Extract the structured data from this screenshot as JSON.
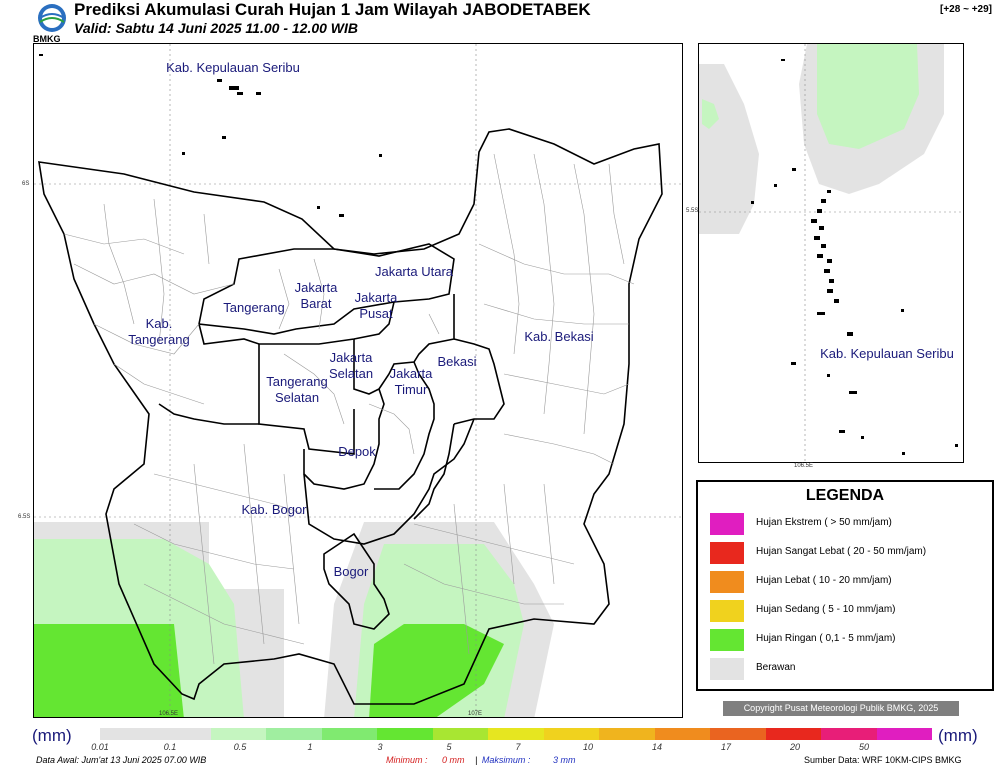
{
  "header": {
    "logo_text": "BMKG",
    "title": "Prediksi Akumulasi Curah Hujan 1 Jam Wilayah JABODETABEK",
    "subtitle": "Valid: Sabtu 14 Juni 2025 11.00 - 12.00 WIB",
    "range": "[+28 ~ +29]"
  },
  "main_map": {
    "labels": [
      {
        "text": "Kab. Kepulauan Seribu"
      },
      {
        "text": "Jakarta Utara"
      },
      {
        "text": "Jakarta\nBarat"
      },
      {
        "text": "Jakarta\nPusat"
      },
      {
        "text": "Tangerang"
      },
      {
        "text": "Kab.\nTangerang"
      },
      {
        "text": "Jakarta\nSelatan"
      },
      {
        "text": "Jakarta\nTimur"
      },
      {
        "text": "Bekasi"
      },
      {
        "text": "Kab. Bekasi"
      },
      {
        "text": "Tangerang\nSelatan"
      },
      {
        "text": "Depok"
      },
      {
        "text": "Kab. Bogor"
      },
      {
        "text": "Bogor"
      }
    ],
    "grid_labels": {
      "lat_top": "6S",
      "lat_bottom": "6.5S",
      "lon_left": "106.5E",
      "lon_right": "107E"
    }
  },
  "inset_map": {
    "label": "Kab. Kepulauan Seribu",
    "grid_labels": {
      "lat": "5.5S",
      "lon": "106.5E"
    }
  },
  "legend": {
    "title": "LEGENDA",
    "items": [
      {
        "label": "Hujan Ekstrem ( > 50 mm/jam)",
        "color": "#e01ec0"
      },
      {
        "label": "Hujan Sangat Lebat ( 20 - 50 mm/jam)",
        "color": "#e8281e"
      },
      {
        "label": "Hujan Lebat ( 10 - 20 mm/jam)",
        "color": "#f08c1e"
      },
      {
        "label": "Hujan Sedang ( 5 - 10 mm/jam)",
        "color": "#f0d21e"
      },
      {
        "label": "Hujan Ringan ( 0,1 - 5 mm/jam)",
        "color": "#64e632"
      },
      {
        "label": "Berawan",
        "color": "#e3e3e3"
      }
    ]
  },
  "copyright": "Copyright Pusat Meteorologi Publik BMKG, 2025",
  "scale": {
    "unit": "(mm)",
    "colors": [
      "#e3e3e3",
      "#e3e3e3",
      "#c5f5c0",
      "#a0eea0",
      "#80ea70",
      "#64e632",
      "#a8e632",
      "#e6e620",
      "#f0d21e",
      "#f0b41e",
      "#f08c1e",
      "#ea6420",
      "#e8281e",
      "#e81e78",
      "#e01ec0"
    ],
    "ticks": [
      "0.01",
      "0.1",
      "0.5",
      "1",
      "3",
      "5",
      "7",
      "10",
      "14",
      "17",
      "20",
      "50"
    ]
  },
  "footer": {
    "data_awal": "Data Awal: Jum'at 13 Juni 2025 07.00 WIB",
    "minimum_label": "Minimum :",
    "minimum_value": "0 mm",
    "separator": "|",
    "maksimum_label": "Maksimum :",
    "maksimum_value": "3 mm",
    "sumber": "Sumber Data: WRF 10KM-CIPS BMKG"
  }
}
